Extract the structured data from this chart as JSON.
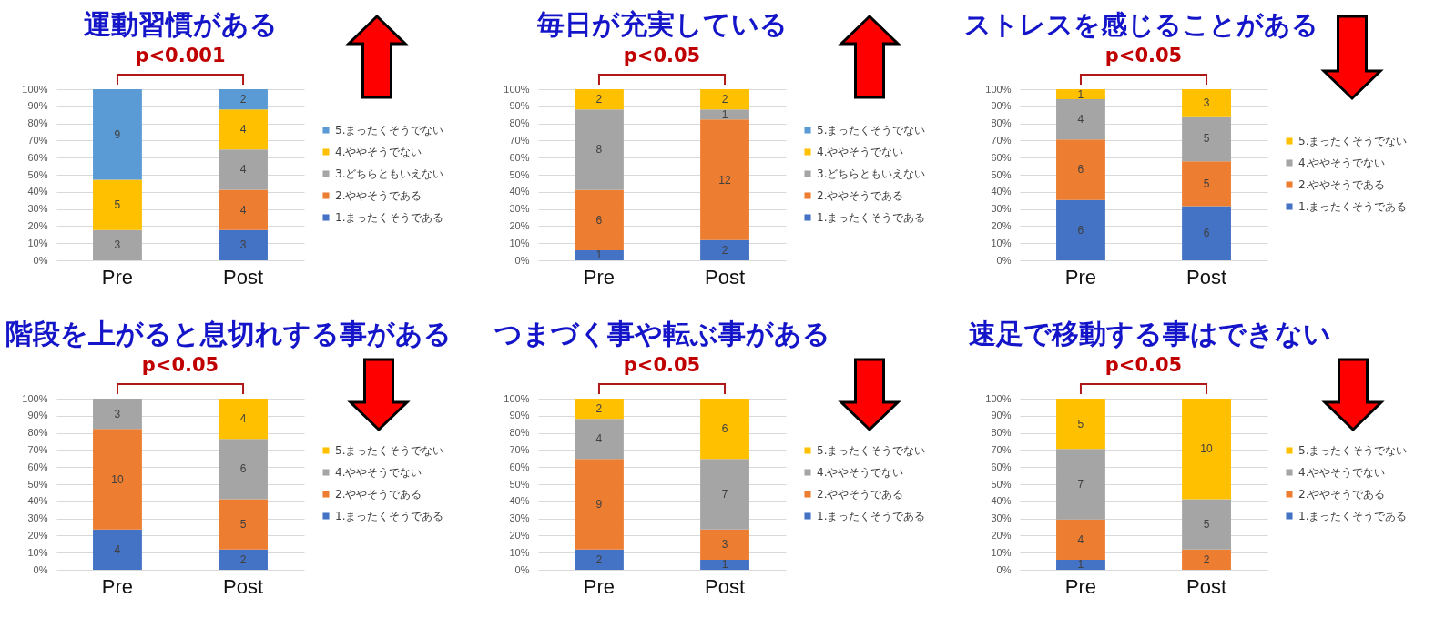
{
  "chart_data": [
    {
      "type": "bar",
      "stacked": true,
      "title": "運動習慣がある",
      "categories": [
        "Pre",
        "Post"
      ],
      "annotations": [
        "p<0.001",
        "9",
        "5",
        "3",
        "2",
        "4",
        "4",
        "4",
        "3"
      ],
      "series": [
        {
          "name": "1.まったくそうである",
          "color": "#4472c4",
          "values": [
            null,
            17.7
          ]
        },
        {
          "name": "2.ややそうである",
          "color": "#ed7d31",
          "values": [
            null,
            23.5
          ]
        },
        {
          "name": "3.どちらともいえない",
          "color": "#a5a5a5",
          "values": [
            17.7,
            23.5
          ]
        },
        {
          "name": "4.ややそうでない",
          "color": "#ffc000",
          "values": [
            29.4,
            23.5
          ]
        },
        {
          "name": "5.まったくそうでない",
          "color": "#5b9bd5",
          "values": [
            52.9,
            11.8
          ]
        }
      ],
      "ylim": [
        0,
        100
      ],
      "yticks": [
        {
          "value": 0,
          "label": "0%"
        },
        {
          "value": 10,
          "label": "10%"
        },
        {
          "value": 20,
          "label": "20%"
        },
        {
          "value": 30,
          "label": "30%"
        },
        {
          "value": 40,
          "label": "40%"
        },
        {
          "value": 50,
          "label": "50%"
        },
        {
          "value": 60,
          "label": "60%"
        },
        {
          "value": 70,
          "label": "70%"
        },
        {
          "value": 80,
          "label": "80%"
        },
        {
          "value": 90,
          "label": "90%"
        },
        {
          "value": 100,
          "label": "100%"
        }
      ],
      "grid": "y",
      "legend": "right"
    },
    {
      "type": "bar",
      "stacked": true,
      "title": "毎日が充実している",
      "categories": [
        "Pre",
        "Post"
      ],
      "annotations": [
        "p<0.05",
        "2",
        "8",
        "6",
        "1",
        "2",
        "1",
        "12",
        "2"
      ],
      "series": [
        {
          "name": "1.まったくそうである",
          "color": "#4472c4",
          "values": [
            5.9,
            11.8
          ]
        },
        {
          "name": "2.ややそうである",
          "color": "#ed7d31",
          "values": [
            35.2,
            70.5
          ]
        },
        {
          "name": "3.どちらともいえない",
          "color": "#a5a5a5",
          "values": [
            47.1,
            5.9
          ]
        },
        {
          "name": "4.ややそうでない",
          "color": "#ffc000",
          "values": [
            11.8,
            11.8
          ]
        },
        {
          "name": "5.まったくそうでない",
          "color": "#5b9bd5",
          "values": [
            null,
            null
          ]
        }
      ],
      "ylim": [
        0,
        100
      ],
      "yticks": [
        {
          "value": 0,
          "label": "0%"
        },
        {
          "value": 10,
          "label": "10%"
        },
        {
          "value": 20,
          "label": "20%"
        },
        {
          "value": 30,
          "label": "30%"
        },
        {
          "value": 40,
          "label": "40%"
        },
        {
          "value": 50,
          "label": "50%"
        },
        {
          "value": 60,
          "label": "60%"
        },
        {
          "value": 70,
          "label": "70%"
        },
        {
          "value": 80,
          "label": "80%"
        },
        {
          "value": 90,
          "label": "90%"
        },
        {
          "value": 100,
          "label": "100%"
        }
      ],
      "grid": "y",
      "legend": "right"
    },
    {
      "type": "bar",
      "stacked": true,
      "title": "ストレスを感じることがある",
      "categories": [
        "Pre",
        "Post"
      ],
      "annotations": [
        "p<0.05",
        "1",
        "4",
        "6",
        "6",
        "3",
        "5",
        "5",
        "6"
      ],
      "series": [
        {
          "name": "1.まったくそうである",
          "color": "#4472c4",
          "values": [
            35.3,
            31.6
          ]
        },
        {
          "name": "2.ややそうである",
          "color": "#ed7d31",
          "values": [
            35.3,
            26.3
          ]
        },
        {
          "name": "4.ややそうでない",
          "color": "#a5a5a5",
          "values": [
            23.5,
            26.3
          ]
        },
        {
          "name": "5.まったくそうでない",
          "color": "#ffc000",
          "values": [
            5.9,
            15.8
          ]
        }
      ],
      "ylim": [
        0,
        100
      ],
      "yticks": [
        {
          "value": 0,
          "label": "0%"
        },
        {
          "value": 10,
          "label": "10%"
        },
        {
          "value": 20,
          "label": "20%"
        },
        {
          "value": 30,
          "label": "30%"
        },
        {
          "value": 40,
          "label": "40%"
        },
        {
          "value": 50,
          "label": "50%"
        },
        {
          "value": 60,
          "label": "60%"
        },
        {
          "value": 70,
          "label": "70%"
        },
        {
          "value": 80,
          "label": "80%"
        },
        {
          "value": 90,
          "label": "90%"
        },
        {
          "value": 100,
          "label": "100%"
        }
      ],
      "grid": "y",
      "legend": "right"
    },
    {
      "type": "bar",
      "stacked": true,
      "title": "階段を上がると息切れする事がある",
      "categories": [
        "Pre",
        "Post"
      ],
      "annotations": [
        "p<0.05",
        "3",
        "10",
        "4",
        "4",
        "6",
        "5",
        "2"
      ],
      "series": [
        {
          "name": "1.まったくそうである",
          "color": "#4472c4",
          "values": [
            23.5,
            11.8
          ]
        },
        {
          "name": "2.ややそうである",
          "color": "#ed7d31",
          "values": [
            58.8,
            29.4
          ]
        },
        {
          "name": "4.ややそうでない",
          "color": "#a5a5a5",
          "values": [
            17.7,
            35.3
          ]
        },
        {
          "name": "5.まったくそうでない",
          "color": "#ffc000",
          "values": [
            null,
            23.5
          ]
        }
      ],
      "ylim": [
        0,
        100
      ],
      "yticks": [
        {
          "value": 0,
          "label": "0%"
        },
        {
          "value": 10,
          "label": "10%"
        },
        {
          "value": 20,
          "label": "20%"
        },
        {
          "value": 30,
          "label": "30%"
        },
        {
          "value": 40,
          "label": "40%"
        },
        {
          "value": 50,
          "label": "50%"
        },
        {
          "value": 60,
          "label": "60%"
        },
        {
          "value": 70,
          "label": "70%"
        },
        {
          "value": 80,
          "label": "80%"
        },
        {
          "value": 90,
          "label": "90%"
        },
        {
          "value": 100,
          "label": "100%"
        }
      ],
      "grid": "y",
      "legend": "right"
    },
    {
      "type": "bar",
      "stacked": true,
      "title": "つまづく事や転ぶ事がある",
      "categories": [
        "Pre",
        "Post"
      ],
      "annotations": [
        "p<0.05",
        "2",
        "4",
        "9",
        "2",
        "6",
        "7",
        "3",
        "1"
      ],
      "series": [
        {
          "name": "1.まったくそうである",
          "color": "#4472c4",
          "values": [
            11.8,
            5.9
          ]
        },
        {
          "name": "2.ややそうである",
          "color": "#ed7d31",
          "values": [
            52.9,
            17.6
          ]
        },
        {
          "name": "4.ややそうでない",
          "color": "#a5a5a5",
          "values": [
            23.5,
            41.2
          ]
        },
        {
          "name": "5.まったくそうでない",
          "color": "#ffc000",
          "values": [
            11.8,
            35.3
          ]
        }
      ],
      "ylim": [
        0,
        100
      ],
      "yticks": [
        {
          "value": 0,
          "label": "0%"
        },
        {
          "value": 10,
          "label": "10%"
        },
        {
          "value": 20,
          "label": "20%"
        },
        {
          "value": 30,
          "label": "30%"
        },
        {
          "value": 40,
          "label": "40%"
        },
        {
          "value": 50,
          "label": "50%"
        },
        {
          "value": 60,
          "label": "60%"
        },
        {
          "value": 70,
          "label": "70%"
        },
        {
          "value": 80,
          "label": "80%"
        },
        {
          "value": 90,
          "label": "90%"
        },
        {
          "value": 100,
          "label": "100%"
        }
      ],
      "grid": "y",
      "legend": "right"
    },
    {
      "type": "bar",
      "stacked": true,
      "title": "速足で移動する事はできない",
      "categories": [
        "Pre",
        "Post"
      ],
      "annotations": [
        "p<0.05",
        "5",
        "7",
        "4",
        "1",
        "10",
        "5",
        "2"
      ],
      "series": [
        {
          "name": "1.まったくそうである",
          "color": "#4472c4",
          "values": [
            5.9,
            null
          ]
        },
        {
          "name": "2.ややそうである",
          "color": "#ed7d31",
          "values": [
            23.5,
            11.8
          ]
        },
        {
          "name": "4.ややそうでない",
          "color": "#a5a5a5",
          "values": [
            41.2,
            29.4
          ]
        },
        {
          "name": "5.まったくそうでない",
          "color": "#ffc000",
          "values": [
            29.4,
            58.8
          ]
        }
      ],
      "ylim": [
        0,
        100
      ],
      "yticks": [
        {
          "value": 0,
          "label": "0%"
        },
        {
          "value": 10,
          "label": "10%"
        },
        {
          "value": 20,
          "label": "20%"
        },
        {
          "value": 30,
          "label": "30%"
        },
        {
          "value": 40,
          "label": "40%"
        },
        {
          "value": 50,
          "label": "50%"
        },
        {
          "value": 60,
          "label": "60%"
        },
        {
          "value": 70,
          "label": "70%"
        },
        {
          "value": 80,
          "label": "80%"
        },
        {
          "value": 90,
          "label": "90%"
        },
        {
          "value": 100,
          "label": "100%"
        }
      ],
      "grid": "y",
      "legend": "right"
    }
  ]
}
